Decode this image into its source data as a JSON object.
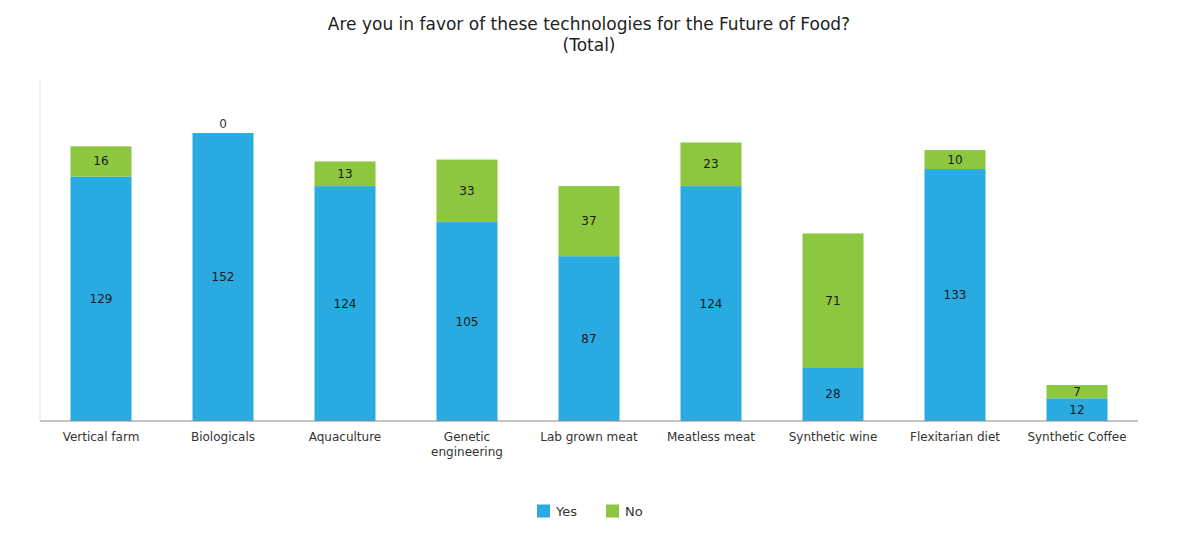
{
  "chart_data": {
    "type": "bar",
    "title": "Are you in favor of these technologies for the Future of Food?\n(Total)",
    "categories": [
      "Vertical farm",
      "Biologicals",
      "Aquaculture",
      "Genetic\nengineering",
      "Lab grown meat",
      "Meatless meat",
      "Synthetic wine",
      "Flexitarian diet",
      "Synthetic Coffee"
    ],
    "series": [
      {
        "name": "Yes",
        "color": "#29ABE2",
        "values": [
          129,
          152,
          124,
          105,
          87,
          124,
          28,
          133,
          12
        ]
      },
      {
        "name": "No",
        "color": "#8DC63F",
        "values": [
          16,
          0,
          13,
          33,
          37,
          23,
          71,
          10,
          7
        ]
      }
    ],
    "stacked": true,
    "ylim": [
      0,
      180
    ],
    "data_labels": true,
    "tick_labels": "x",
    "grid": false,
    "legend": "bottom"
  }
}
